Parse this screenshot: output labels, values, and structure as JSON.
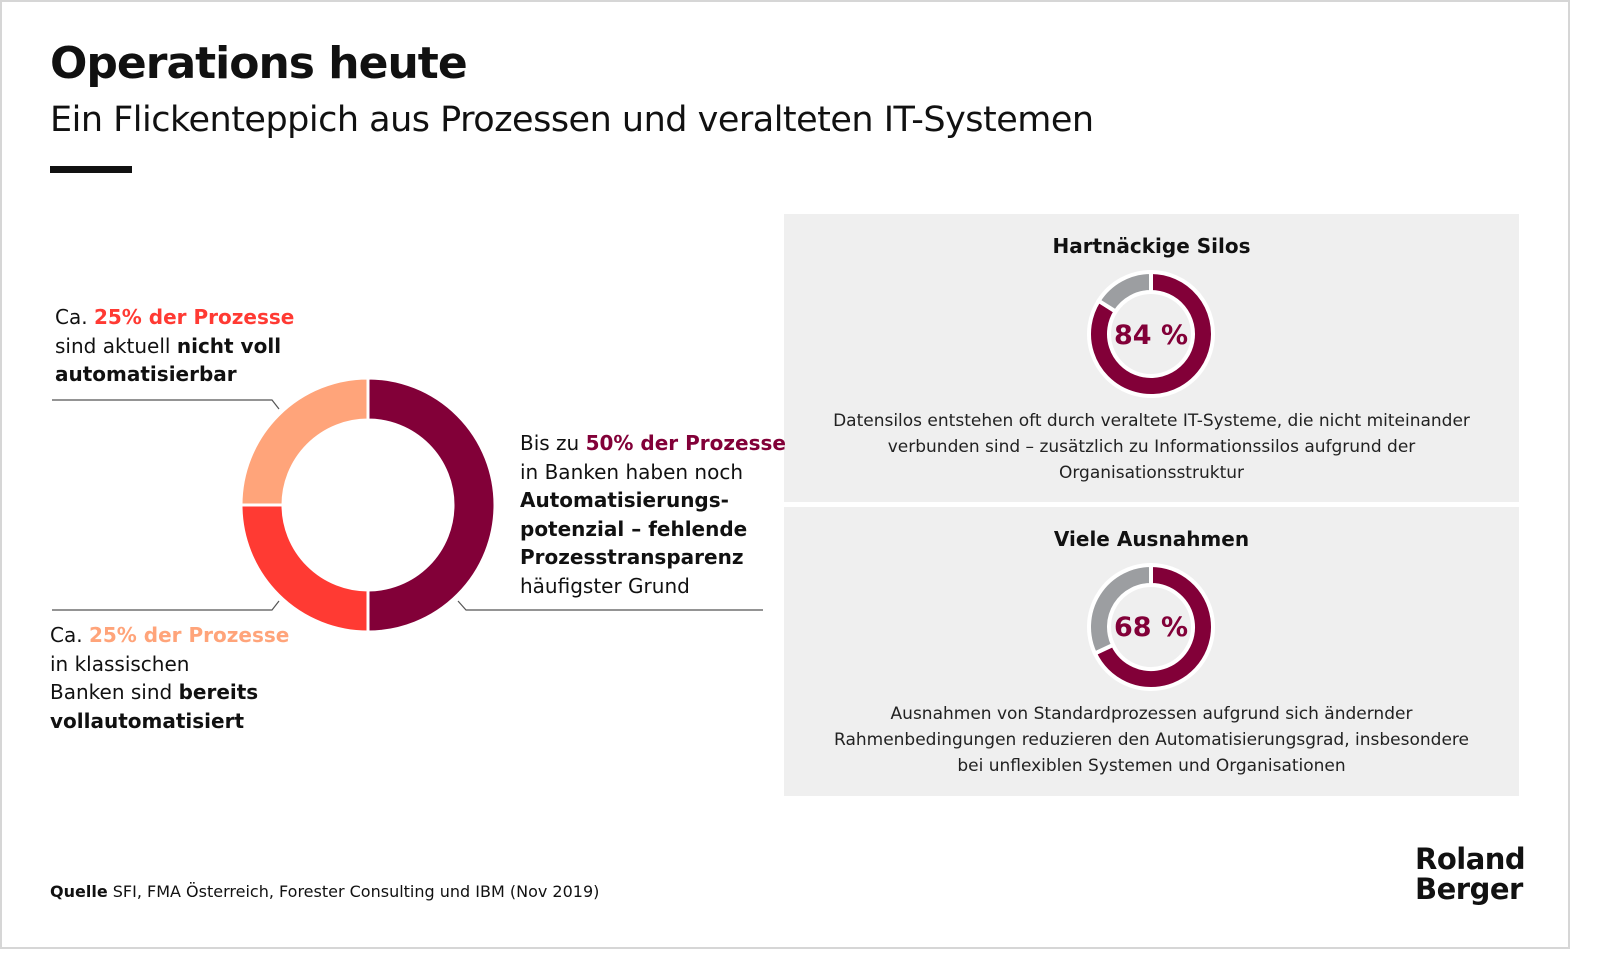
{
  "header": {
    "title": "Operations heute",
    "subtitle": "Ein Flickenteppich aus Prozessen und veralteten IT-Systemen"
  },
  "colors": {
    "maroon": "#820038",
    "red": "#ff3a33",
    "peach": "#ffa47a",
    "grey": "#9c9ea1",
    "panel": "#efefef"
  },
  "chart_data": [
    {
      "type": "pie",
      "variant": "donut",
      "categories": [
        "Automatisierungspotenzial",
        "nicht voll automatisierbar",
        "bereits vollautomatisiert"
      ],
      "values": [
        50,
        25,
        25
      ],
      "colors": [
        "#820038",
        "#ff3a33",
        "#ffa47a"
      ]
    },
    {
      "type": "pie",
      "variant": "donut",
      "title": "Hartnäckige Silos",
      "values": [
        84,
        16
      ],
      "colors": [
        "#820038",
        "#9c9ea1"
      ],
      "center_label": "84 %"
    },
    {
      "type": "pie",
      "variant": "donut",
      "title": "Viele Ausnahmen",
      "values": [
        68,
        32
      ],
      "colors": [
        "#820038",
        "#9c9ea1"
      ],
      "center_label": "68 %"
    }
  ],
  "callouts": {
    "top_left": {
      "l1a": "Ca. ",
      "l1b": "25% der Prozesse",
      "l2a": "sind aktuell ",
      "l2b": "nicht voll",
      "l3": "automatisierbar"
    },
    "bottom_left": {
      "l1a": "Ca. ",
      "l1b": "25% der Prozesse",
      "l2": "in klassischen",
      "l3a": "Banken sind ",
      "l3b": "bereits",
      "l4": "vollautomatisiert"
    },
    "right": {
      "l1a": "Bis zu ",
      "l1b": "50% der Prozesse",
      "l2": "in Banken haben noch",
      "l3": "Automatisierungs-",
      "l4": "potenzial – fehlende",
      "l5": "Prozesstransparenz",
      "l6": "häufigster Grund"
    }
  },
  "panels": [
    {
      "title": "Hartnäckige Silos",
      "value": "84 %",
      "text": "Datensilos entstehen oft durch veraltete IT-Systeme, die nicht miteinander verbunden sind – zusätzlich zu Informationssilos aufgrund der Organisationsstruktur"
    },
    {
      "title": "Viele Ausnahmen",
      "value": "68 %",
      "text": "Ausnahmen von Standardprozessen aufgrund sich ändernder Rahmenbedingungen reduzieren den Automatisierungsgrad, insbesondere bei unflexiblen Systemen und Organisationen"
    }
  ],
  "footer": {
    "source_label": "Quelle",
    "source_text": " SFI, FMA Österreich, Forester Consulting und IBM (Nov 2019)",
    "logo": "Roland Berger"
  }
}
